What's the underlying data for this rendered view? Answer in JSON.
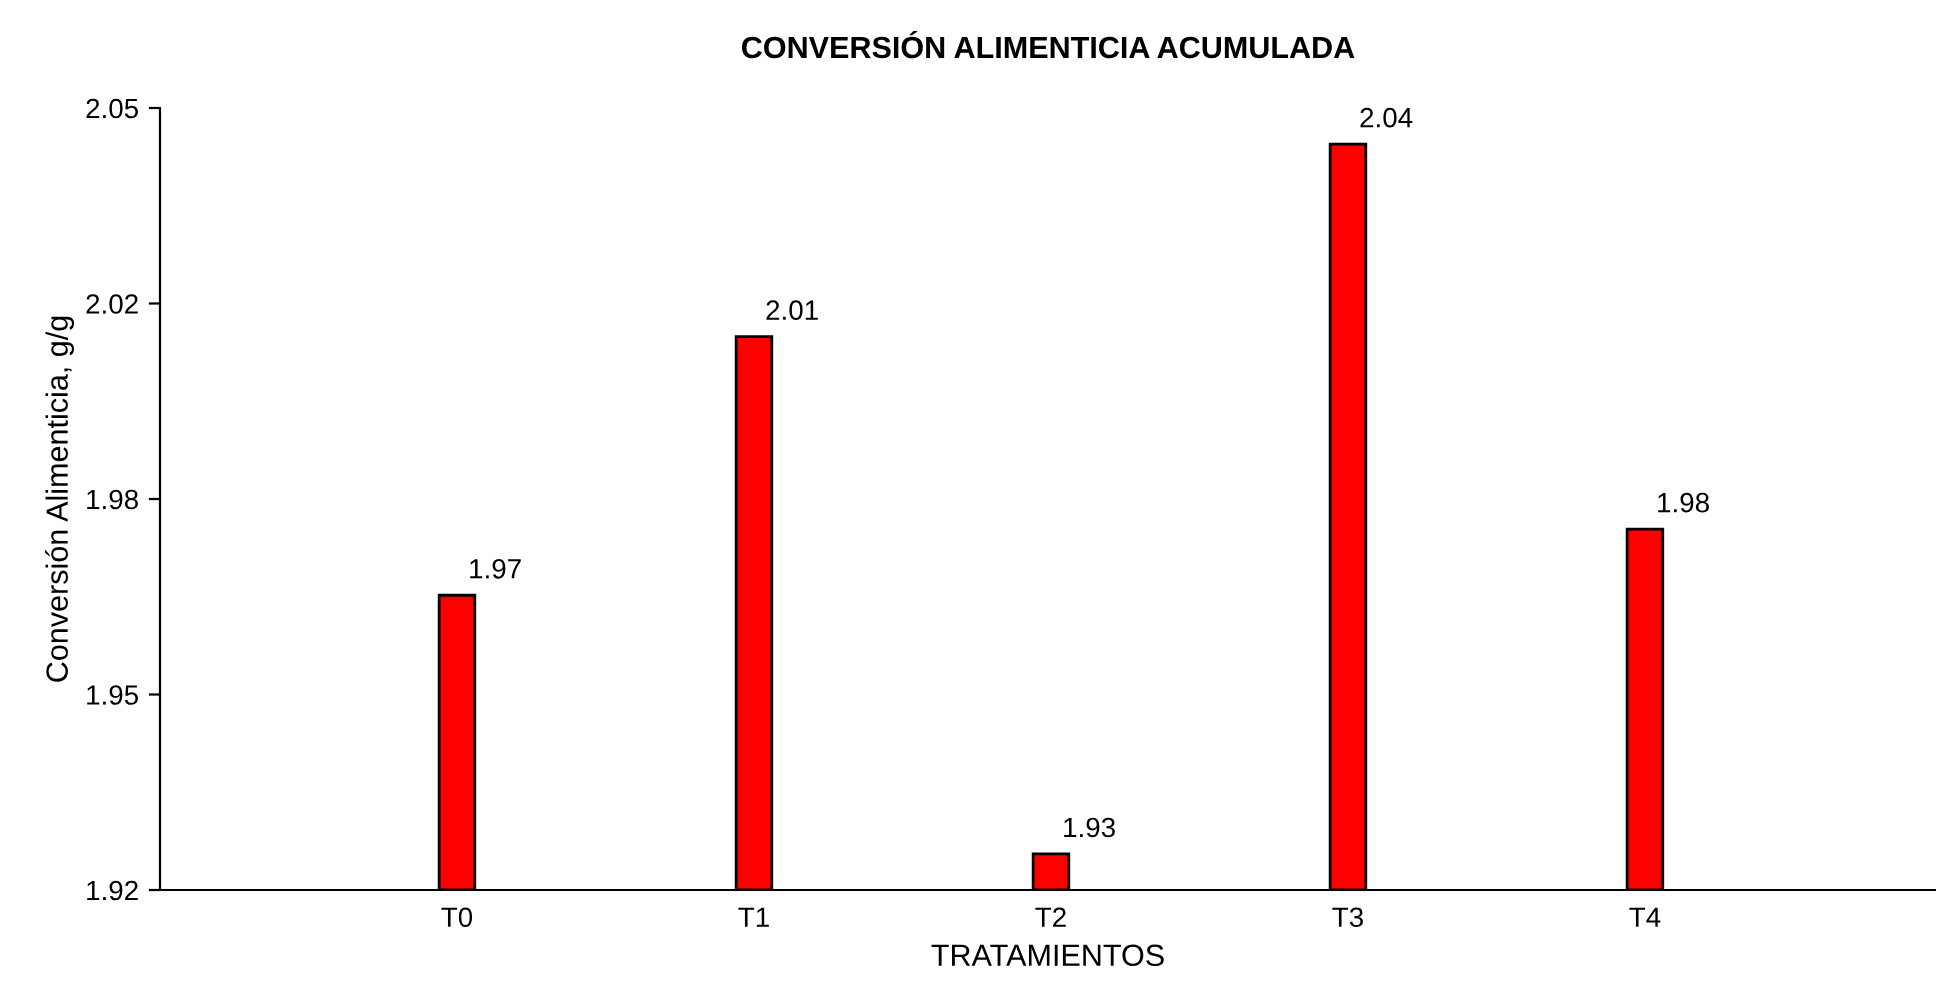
{
  "chart_data": {
    "type": "bar",
    "title": "CONVERSIÓN ALIMENTICIA ACUMULADA",
    "xlabel": "TRATAMIENTOS",
    "ylabel": "Conversión Alimenticia, g/g",
    "categories": [
      "T0",
      "T1",
      "T2",
      "T3",
      "T4"
    ],
    "values": [
      1.969,
      2.012,
      1.926,
      2.044,
      1.98
    ],
    "value_labels": [
      "1.97",
      "2.01",
      "1.93",
      "2.04",
      "1.98"
    ],
    "color": "#ff0000",
    "ylim": [
      1.92,
      2.05
    ],
    "yticks": [
      {
        "value": 1.92,
        "label": "1.92"
      },
      {
        "value": 1.9525,
        "label": "1.95"
      },
      {
        "value": 1.985,
        "label": "1.98"
      },
      {
        "value": 2.0175,
        "label": "2.02"
      },
      {
        "value": 2.05,
        "label": "2.05"
      }
    ],
    "grid": false,
    "legend": false
  }
}
